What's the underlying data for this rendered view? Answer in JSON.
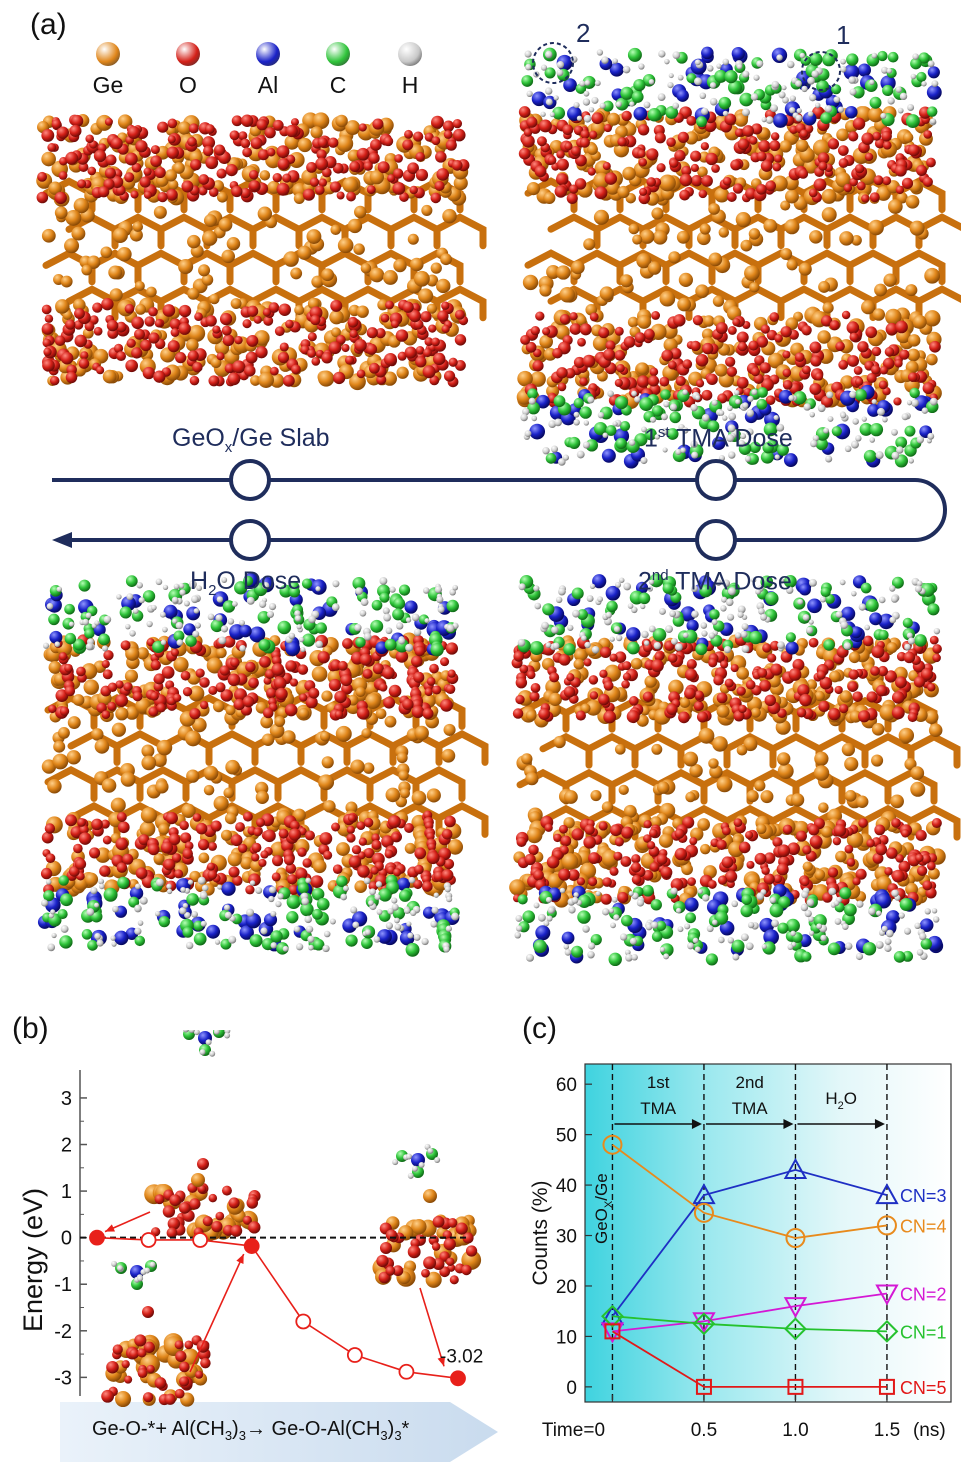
{
  "panel_a": {
    "label": "(a)",
    "legend": [
      {
        "symbol": "Ge",
        "color": "#e0861a"
      },
      {
        "symbol": "O",
        "color": "#d42018"
      },
      {
        "symbol": "Al",
        "color": "#1a22c8"
      },
      {
        "symbol": "C",
        "color": "#2fc43a"
      },
      {
        "symbol": "H",
        "color": "#c8c8c8"
      }
    ],
    "molecule_markers": [
      "2",
      "1"
    ],
    "stages": {
      "slab": {
        "pre": "GeO",
        "sub": "x",
        "post": "/Ge Slab"
      },
      "tma1": {
        "pre": "1",
        "sup": "st",
        "post": " TMA Dose"
      },
      "water": {
        "pre": "H",
        "sub": "2",
        "post": "O Dose"
      },
      "tma2": {
        "pre": "2",
        "sup": "nd",
        "post": " TMA Dose"
      }
    },
    "colors": {
      "cycle": "#1f2d5c",
      "ge": "#d98015",
      "o": "#cc1f14",
      "al": "#1a22c8",
      "c": "#2fc43a",
      "h": "#d0d0d0"
    }
  },
  "panel_b": {
    "label": "(b)",
    "ylabel": "Energy (eV)",
    "yticks": [
      "3",
      "2",
      "1",
      "0",
      "-1",
      "-2",
      "-3"
    ],
    "annotation": "-3.02",
    "reaction": {
      "a": "Ge-O-*+ Al(CH",
      "a_sub": "3",
      "b": ")",
      "b_sub": "3",
      "arrow": "→",
      "c": " Ge-O-Al(CH",
      "c_sub": "3",
      "d": ")",
      "d_sub": "3",
      "e": "*"
    },
    "chart_data": {
      "type": "line",
      "x": [
        0,
        1,
        2,
        3,
        4,
        5,
        6,
        7
      ],
      "values": [
        0.0,
        -0.05,
        -0.05,
        -0.18,
        -1.8,
        -2.52,
        -2.88,
        -3.02
      ],
      "filled": [
        true,
        false,
        false,
        true,
        false,
        false,
        false,
        true
      ],
      "ylim": [
        -3.4,
        3.6
      ],
      "xlabel": "",
      "ylabel": "Energy (eV)",
      "reference_line": 0,
      "color": "#e8201a"
    }
  },
  "panel_c": {
    "label": "(c)",
    "ylabel": "Counts (%)",
    "inner_label": {
      "pre": "GeO",
      "sub": "X",
      "post": "/Ge"
    },
    "phases": [
      {
        "line1": "1st",
        "line2": "TMA"
      },
      {
        "line1": "2nd",
        "line2": "TMA"
      },
      {
        "pre": "H",
        "sub": "2",
        "post": "O"
      }
    ],
    "x_prefix": "Time=",
    "x_unit": "(ns)",
    "xticks": [
      "0",
      "0.5",
      "1.0",
      "1.5"
    ],
    "yticks": [
      "0",
      "10",
      "20",
      "30",
      "40",
      "50",
      "60"
    ],
    "chart_data": {
      "type": "line",
      "x": [
        0,
        0.5,
        1.0,
        1.5
      ],
      "xlim": [
        -0.15,
        1.85
      ],
      "ylim": [
        -3,
        64
      ],
      "xlabel": "Time (ns)",
      "ylabel": "Counts (%)",
      "series": [
        {
          "name": "CN=3",
          "values": [
            14,
            38,
            43,
            38
          ],
          "color": "#1e2fc4",
          "marker": "triangle-up"
        },
        {
          "name": "CN=4",
          "values": [
            48,
            34.5,
            29.5,
            32
          ],
          "color": "#e88a1c",
          "marker": "circle"
        },
        {
          "name": "CN=2",
          "values": [
            11,
            13,
            16,
            18.5
          ],
          "color": "#d418d4",
          "marker": "triangle-down"
        },
        {
          "name": "CN=1",
          "values": [
            14,
            12.5,
            11.5,
            11
          ],
          "color": "#25c22e",
          "marker": "diamond"
        },
        {
          "name": "CN=5",
          "values": [
            11,
            0,
            0,
            0
          ],
          "color": "#e21818",
          "marker": "square"
        }
      ]
    }
  }
}
